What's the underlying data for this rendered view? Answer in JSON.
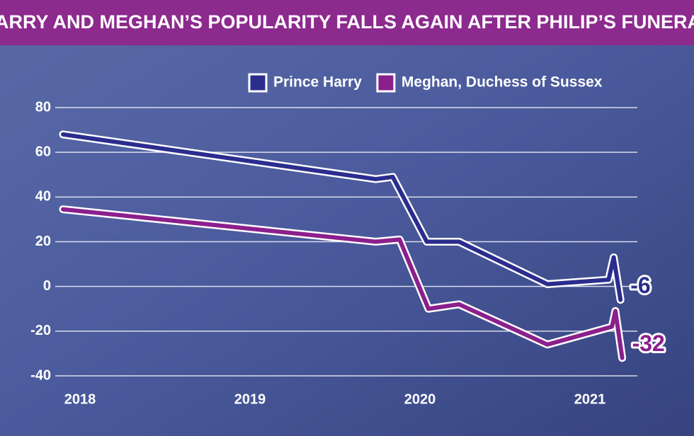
{
  "chart_data": {
    "type": "line",
    "title": "HARRY AND MEGHAN’S POPULARITY FALLS AGAIN AFTER PHILIP’S FUNERAL",
    "xlim": [
      2017.8,
      2021.4
    ],
    "xticks": [
      2018,
      2019,
      2020,
      2021
    ],
    "ylim": [
      -40,
      80
    ],
    "yticks": [
      -40,
      -20,
      0,
      20,
      40,
      60,
      80
    ],
    "grid": true,
    "legend": "top-right",
    "series": [
      {
        "name": "Prince Harry",
        "color": "#2b2d8e",
        "x": [
          2017.9,
          2019.74,
          2019.84,
          2020.04,
          2020.23,
          2020.75,
          2021.11,
          2021.14,
          2021.18
        ],
        "values": [
          68,
          48,
          49,
          20,
          20,
          1,
          3,
          13,
          -6
        ]
      },
      {
        "name": "Meghan, Duchess of Sussex",
        "color": "#8b1f8c",
        "x": [
          2017.9,
          2019.74,
          2019.88,
          2020.05,
          2020.23,
          2020.75,
          2021.13,
          2021.15,
          2021.19
        ],
        "values": [
          34.5,
          20,
          21,
          -10,
          -8,
          -26,
          -18,
          -11,
          -32
        ]
      }
    ]
  }
}
